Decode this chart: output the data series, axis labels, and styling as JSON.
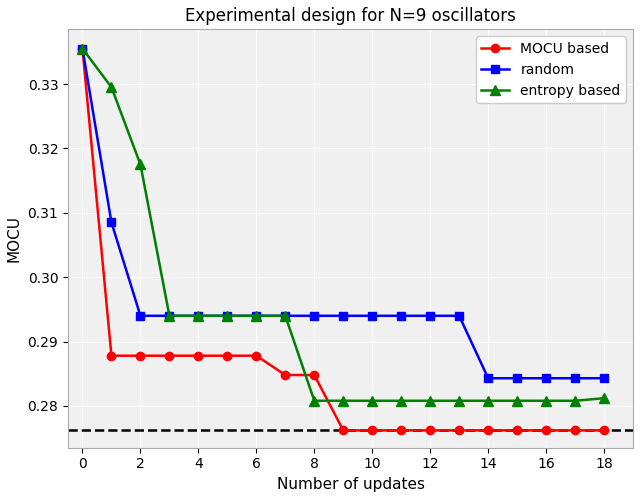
{
  "title": "Experimental design for N=9 oscillators",
  "xlabel": "Number of updates",
  "ylabel": "MOCU",
  "xlim": [
    -0.5,
    19.0
  ],
  "ylim": [
    0.2735,
    0.3385
  ],
  "yticks": [
    0.28,
    0.29,
    0.3,
    0.31,
    0.32,
    0.33
  ],
  "xticks": [
    0,
    2,
    4,
    6,
    8,
    10,
    12,
    14,
    16,
    18
  ],
  "dashed_line_y": 0.2762,
  "mocu": {
    "x": [
      0,
      1,
      2,
      3,
      4,
      5,
      6,
      7,
      8,
      9,
      10,
      11,
      12,
      13,
      14,
      15,
      16,
      17,
      18
    ],
    "y": [
      0.3355,
      0.2878,
      0.2878,
      0.2878,
      0.2878,
      0.2878,
      0.2878,
      0.2848,
      0.2848,
      0.2762,
      0.2762,
      0.2762,
      0.2762,
      0.2762,
      0.2762,
      0.2762,
      0.2762,
      0.2762,
      0.2762
    ],
    "color": "#ff0000",
    "marker": "o",
    "label": "MOCU based",
    "linewidth": 1.8,
    "markersize": 6
  },
  "random": {
    "x": [
      0,
      1,
      2,
      3,
      4,
      5,
      6,
      7,
      8,
      9,
      10,
      11,
      12,
      13,
      14,
      15,
      16,
      17,
      18
    ],
    "y": [
      0.3355,
      0.3085,
      0.294,
      0.294,
      0.294,
      0.294,
      0.294,
      0.294,
      0.294,
      0.294,
      0.294,
      0.294,
      0.294,
      0.294,
      0.2843,
      0.2843,
      0.2843,
      0.2843,
      0.2843
    ],
    "color": "#0000ff",
    "marker": "s",
    "label": "random",
    "linewidth": 1.8,
    "markersize": 6
  },
  "entropy": {
    "x": [
      0,
      1,
      2,
      3,
      4,
      5,
      6,
      7,
      8,
      9,
      10,
      11,
      12,
      13,
      14,
      15,
      16,
      17,
      18
    ],
    "y": [
      0.3355,
      0.3295,
      0.3175,
      0.294,
      0.294,
      0.294,
      0.294,
      0.294,
      0.2808,
      0.2808,
      0.2808,
      0.2808,
      0.2808,
      0.2808,
      0.2808,
      0.2808,
      0.2808,
      0.2808,
      0.2812
    ],
    "color": "#008000",
    "marker": "^",
    "label": "entropy based",
    "linewidth": 1.8,
    "markersize": 7
  },
  "figure_facecolor": "#ffffff",
  "axes_facecolor": "#f0f0f0",
  "grid_color": "#ffffff",
  "title_fontsize": 12,
  "axis_fontsize": 11,
  "tick_fontsize": 10,
  "legend_fontsize": 10
}
